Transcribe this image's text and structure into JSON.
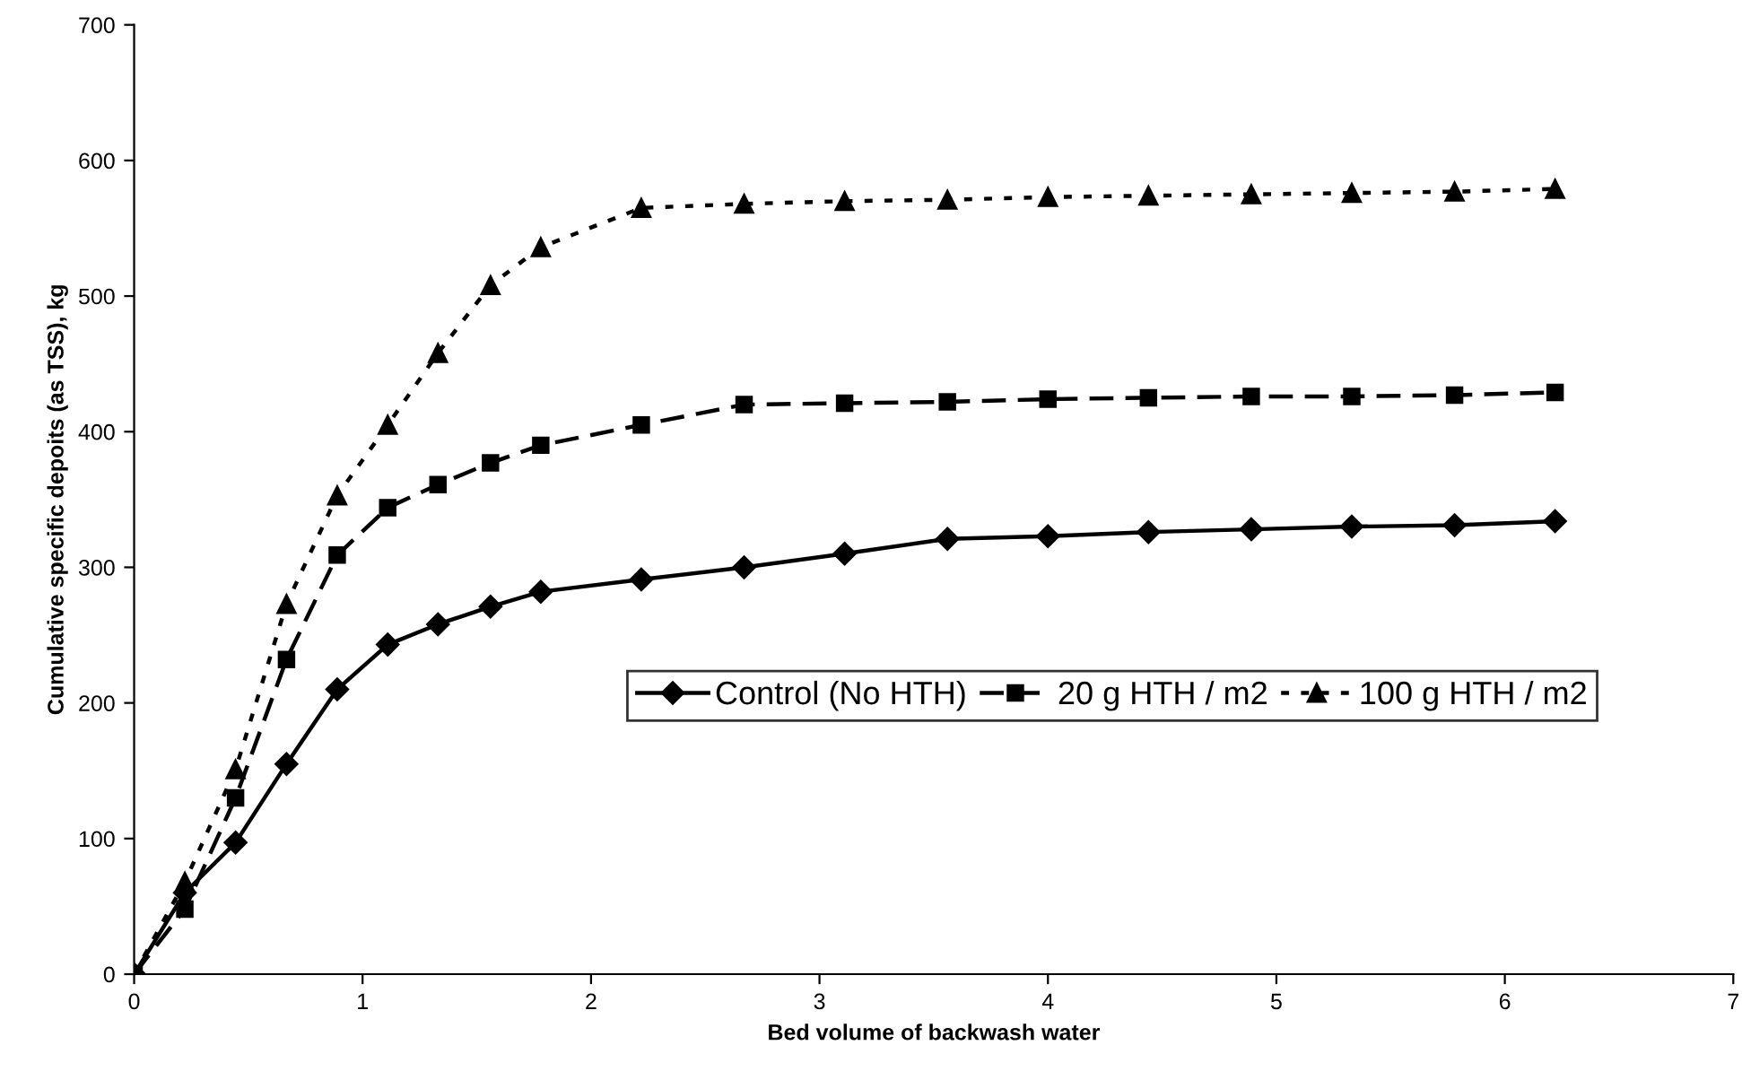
{
  "chart_data": {
    "type": "line",
    "xlabel": "Bed volume of backwash water",
    "ylabel": "Cumulative specific depoits (as TSS), kg",
    "x": [
      0,
      0.222,
      0.444,
      0.667,
      0.889,
      1.11,
      1.33,
      1.56,
      1.78,
      2.22,
      2.67,
      3.11,
      3.56,
      4.0,
      4.44,
      4.89,
      5.33,
      5.78,
      6.22
    ],
    "series": [
      {
        "name": "Control (No HTH)",
        "color": "#000000",
        "marker": "diamond",
        "line_style": "solid",
        "values": [
          0,
          60,
          97,
          155,
          210,
          243,
          258,
          271,
          282,
          291,
          300,
          310,
          321,
          323,
          326,
          328,
          330,
          331,
          334
        ]
      },
      {
        "name": "20 g HTH / m2",
        "color": "#000000",
        "marker": "square",
        "line_style": "dashed",
        "values": [
          0,
          48,
          130,
          232,
          309,
          344,
          361,
          377,
          390,
          405,
          420,
          421,
          422,
          424,
          425,
          426,
          426,
          427,
          429
        ]
      },
      {
        "name": "100 g HTH / m2",
        "color": "#000000",
        "marker": "triangle",
        "line_style": "dotted",
        "values": [
          0,
          68,
          151,
          273,
          353,
          405,
          458,
          508,
          536,
          565,
          568,
          570,
          571,
          573,
          574,
          575,
          576,
          577,
          579
        ]
      }
    ],
    "xlim": [
      0,
      7
    ],
    "xticks": [
      0,
      1,
      2,
      3,
      4,
      5,
      6,
      7
    ],
    "ylim": [
      0,
      700
    ],
    "yticks": [
      0,
      100,
      200,
      300,
      400,
      500,
      600,
      700
    ],
    "grid": false,
    "legend": "lower right"
  }
}
